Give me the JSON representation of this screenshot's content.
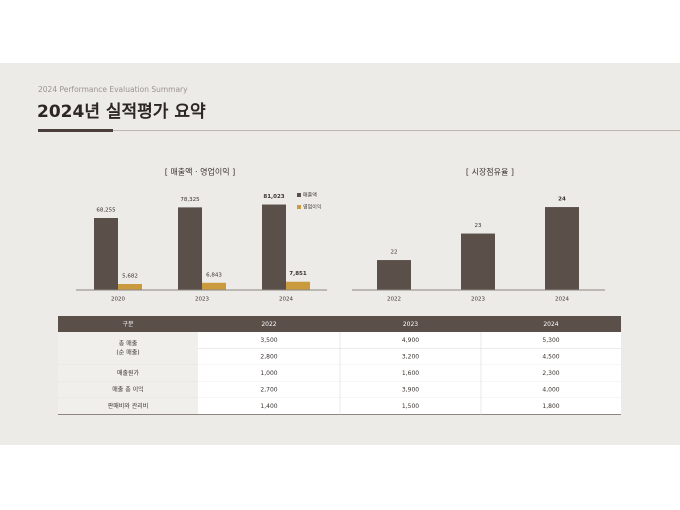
{
  "header": {
    "subtitle": "2024 Performance Evaluation Summary",
    "title": "2024년 실적평가 요약"
  },
  "chart_data": [
    {
      "type": "bar",
      "title": "[ 매출액 · 영업이익 ]",
      "categories": [
        "2020",
        "2023",
        "2024"
      ],
      "series": [
        {
          "name": "매출액",
          "color": "#5a4f49",
          "values": [
            68255,
            78325,
            81023
          ],
          "value_labels": [
            "68,255",
            "78,325",
            "81,023"
          ]
        },
        {
          "name": "영업이익",
          "color": "#c99a3e",
          "values": [
            5682,
            6843,
            7851
          ],
          "value_labels": [
            "5,682",
            "6,843",
            "7,851"
          ]
        }
      ],
      "legend": "right"
    },
    {
      "type": "bar",
      "title": "[ 시장점유율 ]",
      "categories": [
        "2022",
        "2023",
        "2024"
      ],
      "values": [
        22,
        23,
        24
      ],
      "color": "#5a4f49"
    }
  ],
  "table": {
    "header": [
      "구분",
      "2022",
      "2023",
      "2024"
    ],
    "groups": [
      {
        "label": [
          "총 매출",
          "(순 매출)"
        ],
        "rows": [
          [
            "3,500",
            "4,900",
            "5,300"
          ],
          [
            "2,800",
            "3,200",
            "4,500"
          ]
        ]
      },
      {
        "label": [
          "매출원가"
        ],
        "rows": [
          [
            "1,000",
            "1,600",
            "2,300"
          ]
        ]
      },
      {
        "label": [
          "매출 총 이익"
        ],
        "rows": [
          [
            "2,700",
            "3,900",
            "4,000"
          ]
        ]
      },
      {
        "label": [
          "판매비와 관리비"
        ],
        "rows": [
          [
            "1,400",
            "1,500",
            "1,800"
          ]
        ]
      }
    ]
  }
}
